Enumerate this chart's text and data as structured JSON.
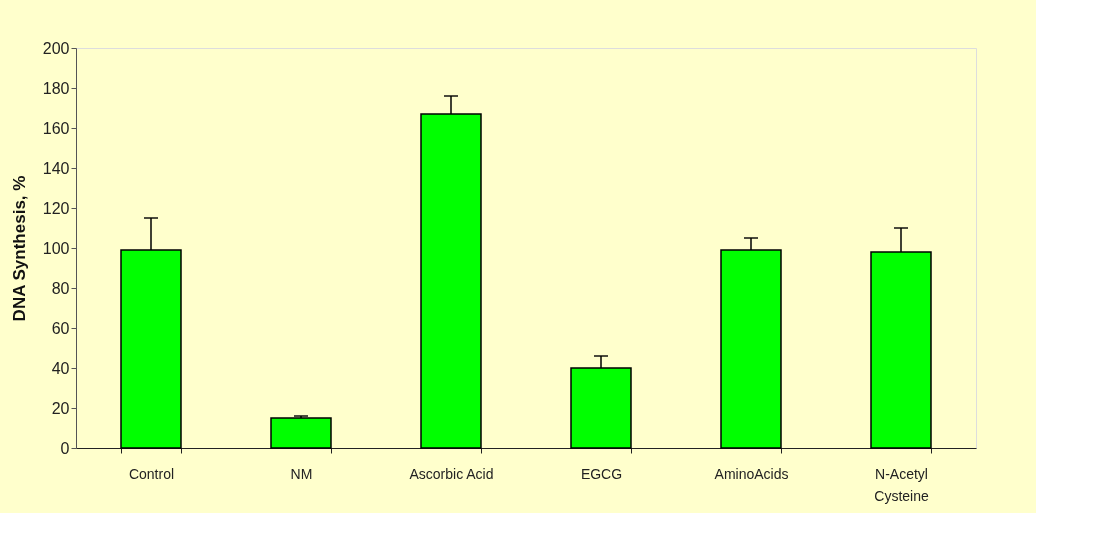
{
  "chart_data": {
    "type": "bar",
    "ylabel": "DNA Synthesis, %",
    "categories": [
      "Control",
      "NM",
      "Ascorbic Acid",
      "EGCG",
      "AminoAcids",
      "N-Acetyl Cysteine"
    ],
    "values": [
      99,
      15,
      167,
      40,
      99,
      98
    ],
    "errors": [
      [
        99,
        115
      ],
      [
        15,
        16
      ],
      [
        167,
        176
      ],
      [
        40,
        46
      ],
      [
        99,
        105
      ],
      [
        98,
        110
      ]
    ],
    "color": "#00ff00",
    "ylim": [
      0,
      200
    ],
    "yticks": [
      0,
      20,
      40,
      60,
      80,
      100,
      120,
      140,
      160,
      180,
      200
    ],
    "grid": false
  }
}
